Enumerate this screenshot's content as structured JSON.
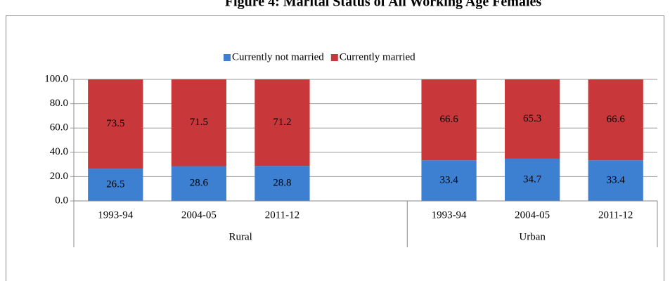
{
  "chart_data": {
    "type": "stacked_bar",
    "title": "Figure 4: Marital Status of All Working Age Females",
    "categories": [
      "1993-94",
      "2004-05",
      "2011-12",
      null,
      "1993-94",
      "2004-05",
      "2011-12"
    ],
    "groups": [
      "Rural",
      "Urban"
    ],
    "series": [
      {
        "name": "Currently not married",
        "color": "#3d7fd1",
        "values": [
          26.5,
          28.6,
          28.8,
          null,
          33.4,
          34.7,
          33.4
        ]
      },
      {
        "name": "Currently married",
        "color": "#c8383a",
        "values": [
          73.5,
          71.5,
          71.2,
          null,
          66.6,
          65.3,
          66.6
        ]
      }
    ],
    "ylim": [
      0,
      100
    ],
    "yticks": [
      {
        "value": 0,
        "label": "0.0"
      },
      {
        "value": 20,
        "label": "20.0"
      },
      {
        "value": 40,
        "label": "40.0"
      },
      {
        "value": 60,
        "label": "60.0"
      },
      {
        "value": 80,
        "label": "80.0"
      },
      {
        "value": 100,
        "label": "100.0"
      }
    ],
    "grid": true,
    "legend": "top"
  }
}
